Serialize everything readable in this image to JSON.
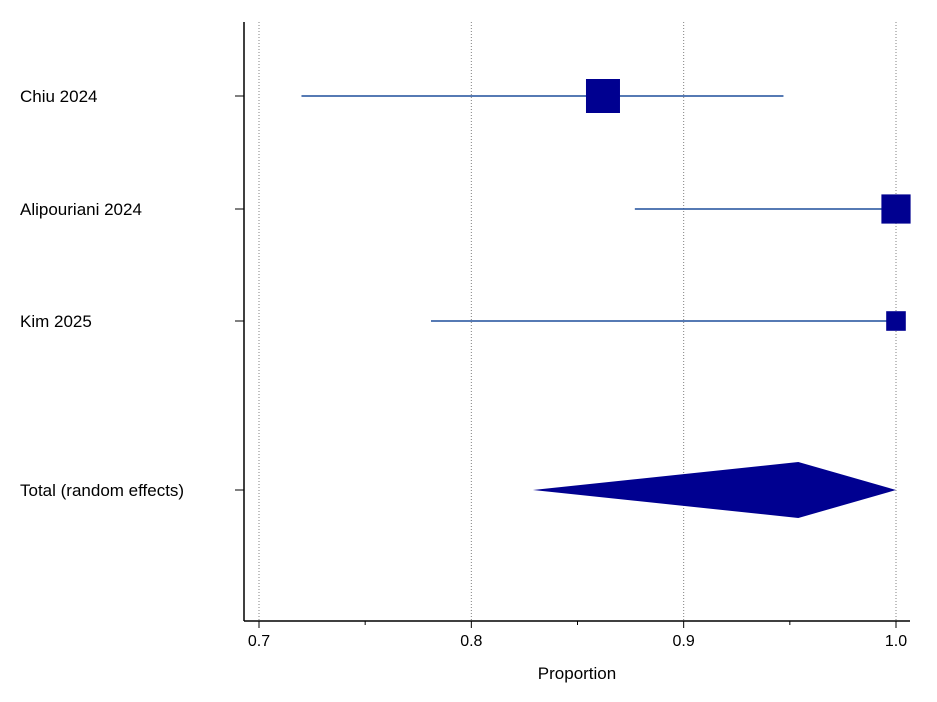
{
  "chart_data": {
    "type": "forest",
    "xlabel": "Proportion",
    "xlim": [
      0.7,
      1.0
    ],
    "x_ticks": [
      0.7,
      0.8,
      0.9,
      1.0
    ],
    "x_tick_labels": [
      "0.7",
      "0.8",
      "0.9",
      "1.0"
    ],
    "minor_ticks": [
      0.75,
      0.85,
      0.95
    ],
    "grid": true,
    "studies": [
      {
        "label": "Chiu 2024",
        "estimate": 0.862,
        "ci": [
          0.72,
          0.947
        ],
        "weight": 1.0
      },
      {
        "label": "Alipouriani 2024",
        "estimate": 1.0,
        "ci": [
          0.877,
          1.0
        ],
        "weight": 0.8
      },
      {
        "label": "Kim 2025",
        "estimate": 1.0,
        "ci": [
          0.781,
          1.0
        ],
        "weight": 0.4
      }
    ],
    "summary": {
      "label": "Total (random effects)",
      "estimate": 0.954,
      "ci": [
        0.829,
        1.0
      ]
    },
    "colors": {
      "marker": "#000090",
      "ci_line": "#1f4e9c",
      "axis": "#000000",
      "grid": "#808080"
    }
  }
}
